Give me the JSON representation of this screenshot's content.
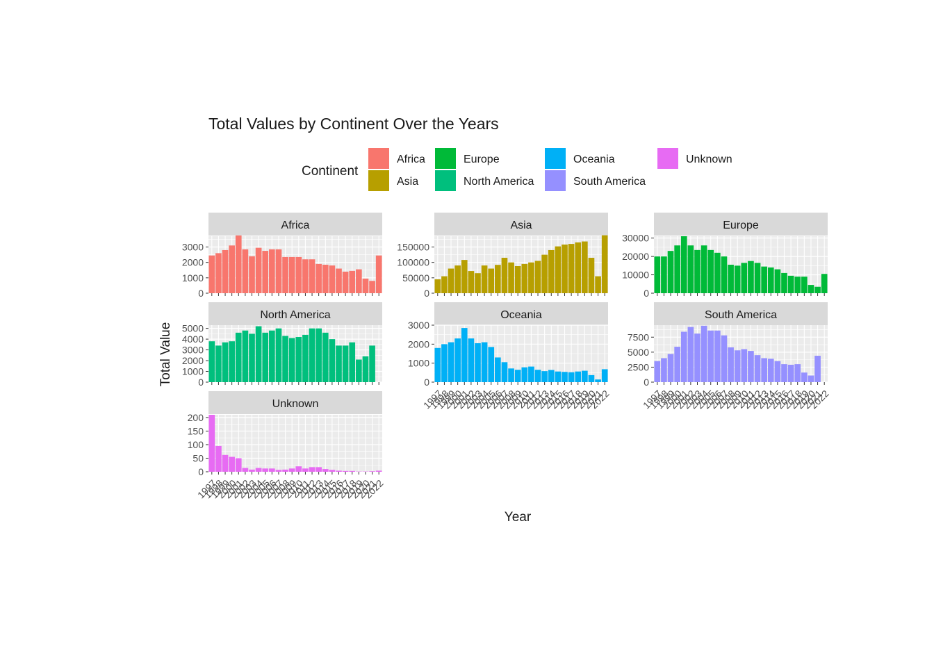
{
  "chart_data": {
    "type": "bar",
    "title": "Total Values by Continent Over the Years",
    "xlabel": "Year",
    "ylabel": "Total Value",
    "legend": {
      "title": "Continent",
      "position": "top"
    },
    "grid": true,
    "layout": "facet_wrap, 3 columns, free y scales",
    "x_ticks": [
      "1997",
      "1998",
      "1999",
      "2000",
      "2001",
      "2002",
      "2003",
      "2004",
      "2005",
      "2006",
      "2007",
      "2008",
      "2009",
      "2010",
      "2011",
      "2012",
      "2013",
      "2014",
      "2015",
      "2016",
      "2017",
      "2018",
      "2019",
      "2020",
      "2021",
      "2022"
    ],
    "panels": [
      {
        "name": "Africa",
        "color": "#F8766D",
        "ylim": [
          0,
          3700
        ],
        "yticks": [
          0,
          1000,
          2000,
          3000
        ],
        "values": [
          2450,
          2600,
          2800,
          3100,
          3750,
          2850,
          2400,
          2950,
          2750,
          2850,
          2850,
          2350,
          2350,
          2350,
          2200,
          2200,
          1900,
          1850,
          1800,
          1600,
          1400,
          1450,
          1550,
          950,
          800,
          2450
        ]
      },
      {
        "name": "Asia",
        "color": "#B79F00",
        "ylim": [
          0,
          185000
        ],
        "yticks": [
          0,
          50000,
          100000,
          150000
        ],
        "values": [
          45000,
          55000,
          80000,
          90000,
          108000,
          72000,
          65000,
          90000,
          80000,
          92000,
          115000,
          100000,
          88000,
          95000,
          100000,
          105000,
          125000,
          140000,
          152000,
          158000,
          160000,
          165000,
          168000,
          115000,
          55000,
          188000
        ]
      },
      {
        "name": "Europe",
        "color": "#00BA38",
        "ylim": [
          0,
          31000
        ],
        "yticks": [
          0,
          10000,
          20000,
          30000
        ],
        "values": [
          20000,
          20000,
          23000,
          26000,
          31000,
          26000,
          23500,
          26000,
          23500,
          22000,
          20000,
          15500,
          15000,
          16500,
          17500,
          16500,
          14500,
          14000,
          13000,
          11000,
          9500,
          9000,
          9000,
          4500,
          3500,
          10500
        ]
      },
      {
        "name": "North America",
        "color": "#00BF7D",
        "ylim": [
          0,
          5300
        ],
        "yticks": [
          0,
          1000,
          2000,
          3000,
          4000,
          5000
        ],
        "values": [
          3800,
          3400,
          3700,
          3800,
          4600,
          4800,
          4500,
          5200,
          4600,
          4800,
          5000,
          4300,
          4100,
          4200,
          4400,
          5000,
          5000,
          4600,
          4000,
          3400,
          3400,
          3700,
          2100,
          2400,
          3400,
          0
        ]
      },
      {
        "name": "Oceania",
        "color": "#00B0F6",
        "ylim": [
          0,
          3000
        ],
        "yticks": [
          0,
          1000,
          2000,
          3000
        ],
        "values": [
          1800,
          2000,
          2100,
          2300,
          2850,
          2300,
          2050,
          2100,
          1850,
          1300,
          1050,
          720,
          650,
          780,
          820,
          650,
          580,
          640,
          560,
          540,
          520,
          560,
          600,
          370,
          140,
          680
        ]
      },
      {
        "name": "South America",
        "color": "#9590FF",
        "ylim": [
          0,
          9500
        ],
        "yticks": [
          0,
          2500,
          5000,
          7500
        ],
        "values": [
          3500,
          4000,
          4700,
          5900,
          8400,
          9200,
          8100,
          9400,
          8600,
          8600,
          7800,
          5800,
          5300,
          5500,
          5200,
          4500,
          4000,
          3900,
          3500,
          3000,
          2900,
          3000,
          1600,
          1100,
          4400,
          0
        ]
      },
      {
        "name": "Unknown",
        "color": "#E76BF3",
        "ylim": [
          0,
          210
        ],
        "yticks": [
          0,
          50,
          100,
          150,
          200
        ],
        "values": [
          210,
          95,
          62,
          55,
          50,
          14,
          8,
          14,
          12,
          12,
          7,
          8,
          12,
          20,
          12,
          17,
          17,
          10,
          7,
          4,
          3,
          3,
          1,
          1,
          2,
          4
        ]
      }
    ],
    "legend_entries": [
      {
        "label": "Africa",
        "color": "#F8766D"
      },
      {
        "label": "Asia",
        "color": "#B79F00"
      },
      {
        "label": "Europe",
        "color": "#00BA38"
      },
      {
        "label": "North America",
        "color": "#00BF7D"
      },
      {
        "label": "Oceania",
        "color": "#00B0F6"
      },
      {
        "label": "South America",
        "color": "#9590FF"
      },
      {
        "label": "Unknown",
        "color": "#E76BF3"
      }
    ]
  }
}
